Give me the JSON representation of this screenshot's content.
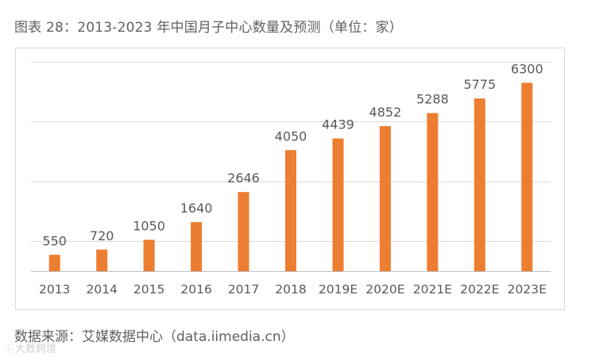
{
  "caption": {
    "text": "图表 28：2013-2023 年中国月子中心数量及预测（单位：家）"
  },
  "source": {
    "text": "数据来源：艾媒数据中心（data.iimedia.cn）"
  },
  "watermark": {
    "text": "大数跨境"
  },
  "colors": {
    "bar": "#ED7D31",
    "grid": "#d9d9d9",
    "axis": "#bfbfbf",
    "label": "#595959"
  },
  "chart_data": {
    "type": "bar",
    "categories": [
      "2013",
      "2014",
      "2015",
      "2016",
      "2017",
      "2018",
      "2019E",
      "2020E",
      "2021E",
      "2022E",
      "2023E"
    ],
    "values": [
      550,
      720,
      1050,
      1640,
      2646,
      4050,
      4439,
      4852,
      5288,
      5775,
      6300
    ],
    "title": "",
    "xlabel": "",
    "ylabel": "",
    "ylim": [
      0,
      7000
    ],
    "grid": true,
    "gridlines": [
      0,
      1000,
      3000,
      5000,
      7000
    ],
    "legend": "none",
    "data_labels": true,
    "y_tick_labels": false
  }
}
